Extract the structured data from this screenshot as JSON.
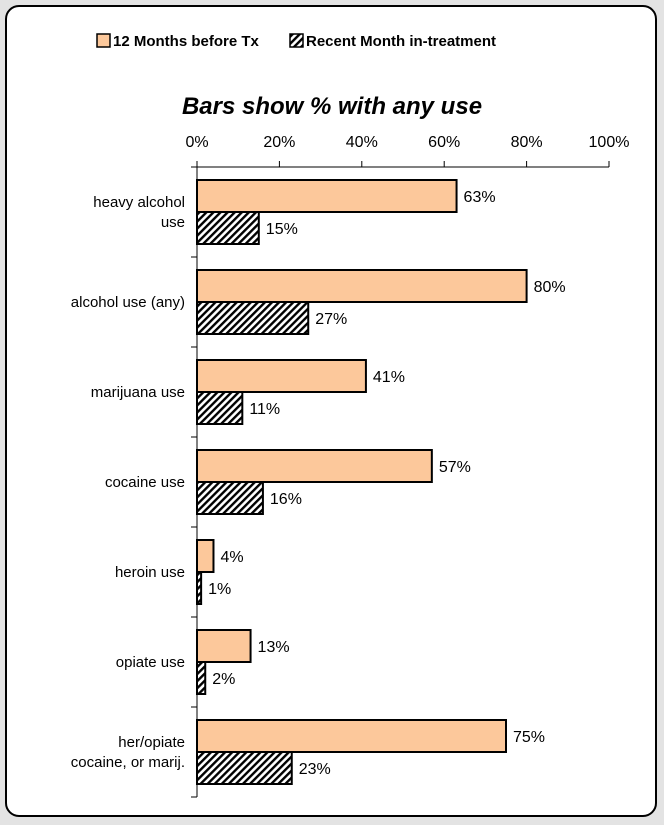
{
  "chart_data": {
    "type": "bar",
    "orientation": "horizontal",
    "title": "Bars show % with any use",
    "categories": [
      "heavy alcohol use",
      "alcohol use (any)",
      "marijuana use",
      "cocaine use",
      "heroin use",
      "opiate use",
      "her/opiate cocaine, or marij."
    ],
    "category_lines": [
      [
        "heavy alcohol",
        "use"
      ],
      [
        "alcohol use (any)"
      ],
      [
        "marijuana use"
      ],
      [
        "cocaine use"
      ],
      [
        "heroin use"
      ],
      [
        "opiate use"
      ],
      [
        "her/opiate",
        "cocaine, or marij."
      ]
    ],
    "series": [
      {
        "name": "12 Months before Tx",
        "values": [
          63,
          80,
          41,
          57,
          4,
          13,
          75
        ],
        "labels": [
          "63%",
          "80%",
          "41%",
          "57%",
          "4%",
          "13%",
          "75%"
        ],
        "color": "#fcc89b",
        "pattern": "solid"
      },
      {
        "name": "Recent Month in-treatment",
        "values": [
          15,
          27,
          11,
          16,
          1,
          2,
          23
        ],
        "labels": [
          "15%",
          "27%",
          "11%",
          "16%",
          "1%",
          "2%",
          "23%"
        ],
        "color": "#000000",
        "pattern": "diagonal-hatch"
      }
    ],
    "xlim": [
      0,
      100
    ],
    "xticks": [
      0,
      20,
      40,
      60,
      80,
      100
    ],
    "xtick_labels": [
      "0%",
      "20%",
      "40%",
      "60%",
      "80%",
      "100%"
    ],
    "x_axis_position": "top",
    "grid": false,
    "legend_position": "top"
  }
}
